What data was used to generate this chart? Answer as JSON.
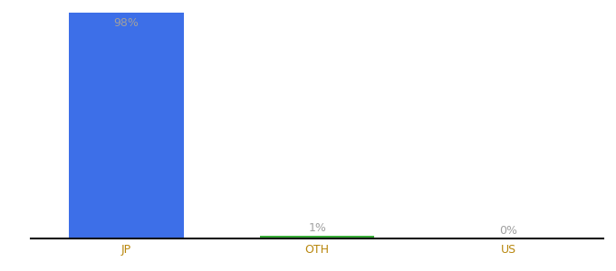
{
  "categories": [
    "JP",
    "OTH",
    "US"
  ],
  "values": [
    98,
    1,
    0
  ],
  "bar_colors": [
    "#3d6fe8",
    "#3aaf3a",
    "#3d6fe8"
  ],
  "label_texts": [
    "98%",
    "1%",
    "0%"
  ],
  "ylim": [
    0,
    100
  ],
  "background_color": "#ffffff",
  "bar_width": 0.6,
  "label_color": "#a0a0a0",
  "tick_color": "#b8860b",
  "axis_line_color": "#111111",
  "tick_fontsize": 9,
  "label_fontsize": 9
}
